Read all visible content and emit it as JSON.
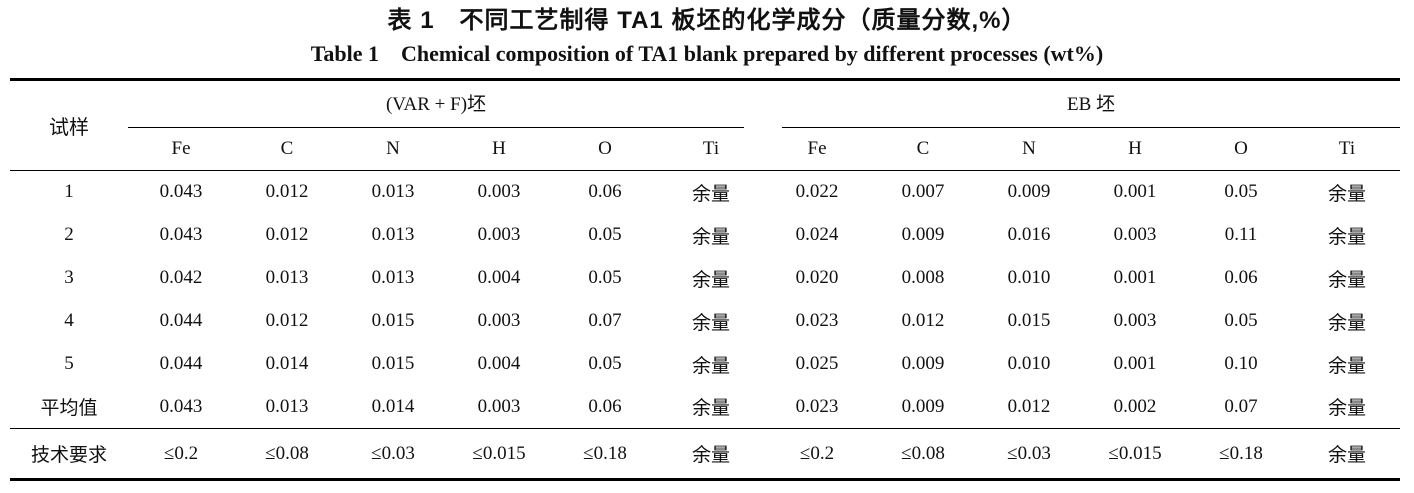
{
  "page": {
    "background": "#ffffff",
    "text_color": "#111111"
  },
  "title": {
    "zh": "表 1　不同工艺制得 TA1 板坯的化学成分（质量分数,%）",
    "en": "Table 1　Chemical composition of TA1 blank prepared by different processes (wt%)"
  },
  "table": {
    "sample_header": "试样",
    "groups": [
      {
        "label": "(VAR + F)坯",
        "elements": [
          "Fe",
          "C",
          "N",
          "H",
          "O",
          "Ti"
        ]
      },
      {
        "label": "EB 坯",
        "elements": [
          "Fe",
          "C",
          "N",
          "H",
          "O",
          "Ti"
        ]
      }
    ]
  },
  "chart_data": {
    "type": "table",
    "title": "表 1　不同工艺制得 TA1 板坯的化学成分（质量分数,%） / Table 1 Chemical composition of TA1 blank prepared by different processes (wt%)",
    "column_groups": [
      "(VAR + F)坯",
      "EB 坯"
    ],
    "columns": [
      "试样",
      "Fe",
      "C",
      "N",
      "H",
      "O",
      "Ti",
      "Fe",
      "C",
      "N",
      "H",
      "O",
      "Ti"
    ],
    "rows": [
      [
        "1",
        "0.043",
        "0.012",
        "0.013",
        "0.003",
        "0.06",
        "余量",
        "0.022",
        "0.007",
        "0.009",
        "0.001",
        "0.05",
        "余量"
      ],
      [
        "2",
        "0.043",
        "0.012",
        "0.013",
        "0.003",
        "0.05",
        "余量",
        "0.024",
        "0.009",
        "0.016",
        "0.003",
        "0.11",
        "余量"
      ],
      [
        "3",
        "0.042",
        "0.013",
        "0.013",
        "0.004",
        "0.05",
        "余量",
        "0.020",
        "0.008",
        "0.010",
        "0.001",
        "0.06",
        "余量"
      ],
      [
        "4",
        "0.044",
        "0.012",
        "0.015",
        "0.003",
        "0.07",
        "余量",
        "0.023",
        "0.012",
        "0.015",
        "0.003",
        "0.05",
        "余量"
      ],
      [
        "5",
        "0.044",
        "0.014",
        "0.015",
        "0.004",
        "0.05",
        "余量",
        "0.025",
        "0.009",
        "0.010",
        "0.001",
        "0.10",
        "余量"
      ],
      [
        "平均值",
        "0.043",
        "0.013",
        "0.014",
        "0.003",
        "0.06",
        "余量",
        "0.023",
        "0.009",
        "0.012",
        "0.002",
        "0.07",
        "余量"
      ],
      [
        "技术要求",
        "≤0.2",
        "≤0.08",
        "≤0.03",
        "≤0.015",
        "≤0.18",
        "余量",
        "≤0.2",
        "≤0.08",
        "≤0.03",
        "≤0.015",
        "≤0.18",
        "余量"
      ]
    ]
  }
}
